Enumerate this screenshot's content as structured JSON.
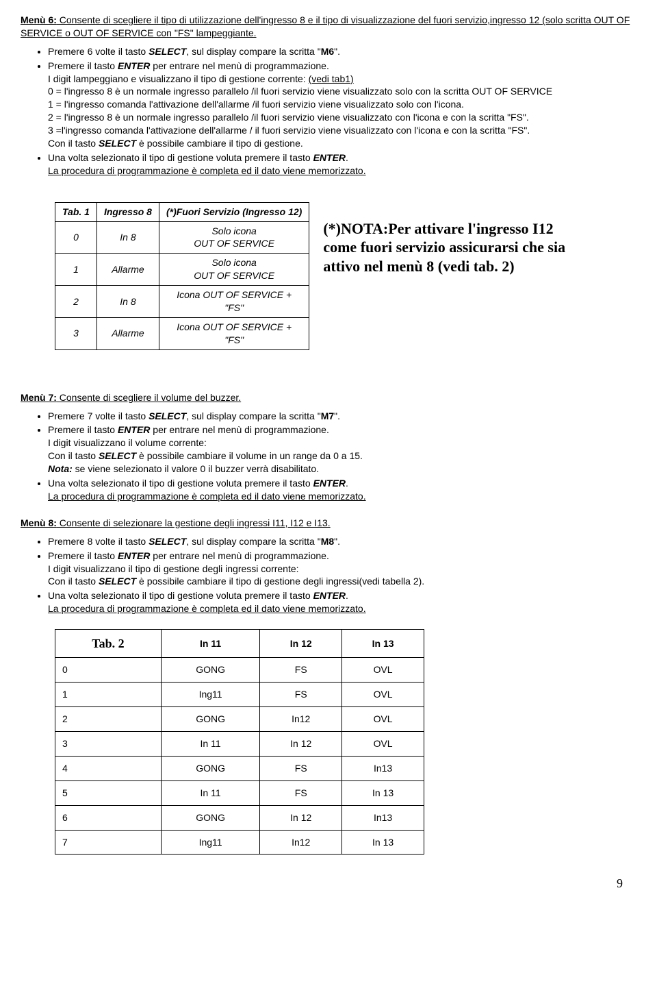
{
  "menu6": {
    "title_prefix": "Menù 6:",
    "title_rest": " Consente di scegliere il tipo di utilizzazione dell'ingresso 8 e il tipo di visualizzazione del fuori servizio,ingresso 12 (solo scritta OUT OF SERVICE o OUT OF SERVICE con \"FS\" lampeggiante.",
    "b1_pre": "Premere 6 volte il tasto ",
    "b1_select": "SELECT",
    "b1_mid": ", sul display compare la scritta \"",
    "b1_m6": "M6",
    "b1_end": "\".",
    "b2_pre": "Premere il tasto ",
    "b2_enter": "ENTER",
    "b2_end": " per entrare nel menù di programmazione.",
    "b2_sub1": "I digit lampeggiano e visualizzano il tipo di gestione corrente: ",
    "b2_sub1_ul": "(vedi tab1)",
    "b2_sub2": "0 = l'ingresso 8 è un normale ingresso parallelo /il fuori servizio viene visualizzato solo con la scritta OUT OF SERVICE",
    "b2_sub3": "1 = l'ingresso comanda l'attivazione dell'allarme /il fuori servizio viene visualizzato solo con l'icona.",
    "b2_sub4": "2 = l'ingresso 8 è un normale ingresso parallelo /il fuori servizio viene visualizzato con l'icona e con la scritta \"FS\".",
    "b2_sub5": "3 =l'ingresso comanda l'attivazione dell'allarme / il fuori servizio viene visualizzato con l'icona e con la scritta \"FS\".",
    "b2_sub6_pre": "Con il tasto ",
    "b2_sub6_select": "SELECT",
    "b2_sub6_end": " è possibile cambiare il tipo di gestione.",
    "b3_pre": "Una volta selezionato il tipo di gestione voluta premere il tasto ",
    "b3_enter": "ENTER",
    "b3_end": ".",
    "b3_sub": "La procedura di programmazione è completa ed il dato viene memorizzato."
  },
  "tab1": {
    "h1": "Tab. 1",
    "h2": "Ingresso 8",
    "h3": "(*)Fuori Servizio (Ingresso 12)",
    "rows": [
      [
        "0",
        "In 8",
        "Solo icona\nOUT OF SERVICE"
      ],
      [
        "1",
        "Allarme",
        "Solo icona\nOUT OF SERVICE"
      ],
      [
        "2",
        "In 8",
        "Icona OUT OF SERVICE +\n\"FS\""
      ],
      [
        "3",
        "Allarme",
        "Icona OUT OF SERVICE +\n\"FS\""
      ]
    ]
  },
  "note": "(*)NOTA:Per attivare l'ingresso I12 come fuori servizio assicurarsi che sia attivo nel menù 8 (vedi tab. 2)",
  "menu7": {
    "title_prefix": "Menù 7:",
    "title_rest": " Consente di scegliere il volume del buzzer.",
    "b1_pre": "Premere 7 volte il tasto ",
    "b1_select": "SELECT",
    "b1_mid": ", sul display compare la scritta \"",
    "b1_m7": "M7",
    "b1_end": "\".",
    "b2_pre": "Premere il tasto ",
    "b2_enter": "ENTER",
    "b2_end": " per entrare nel menù di programmazione.",
    "b2_sub1": "I digit visualizzano il volume corrente:",
    "b2_sub2_pre": "Con il tasto ",
    "b2_sub2_select": "SELECT",
    "b2_sub2_end": " è possibile cambiare il volume in un range da 0 a 15.",
    "b2_sub3_pre": "Nota:",
    "b2_sub3_end": " se viene selezionato il valore 0 il buzzer verrà disabilitato.",
    "b3_pre": "Una volta selezionato il tipo di gestione voluta premere il tasto ",
    "b3_enter": "ENTER",
    "b3_end": ".",
    "b3_sub": "La procedura di programmazione è completa ed il dato viene memorizzato."
  },
  "menu8": {
    "title_prefix": "Menù 8:",
    "title_rest": " Consente di selezionare la gestione degli ingressi I11, I12 e I13.",
    "b1_pre": "Premere 8 volte il tasto ",
    "b1_select": "SELECT",
    "b1_mid": ", sul display compare la scritta \"",
    "b1_m8": "M8",
    "b1_end": "\".",
    "b2_pre": "Premere il tasto ",
    "b2_enter": "ENTER",
    "b2_end": " per entrare nel menù di programmazione.",
    "b2_sub1": "I digit visualizzano il tipo di gestione degli ingressi corrente:",
    "b2_sub2_pre": "Con il tasto ",
    "b2_sub2_select": "SELECT",
    "b2_sub2_end": " è possibile cambiare il tipo di gestione degli ingressi(vedi tabella 2).",
    "b3_pre": "Una volta selezionato il tipo di gestione voluta premere il tasto ",
    "b3_enter": "ENTER",
    "b3_end": ".",
    "b3_sub": "La procedura di programmazione è completa ed il dato viene memorizzato."
  },
  "tab2": {
    "h1": "Tab. 2",
    "h2": "In 11",
    "h3": "In 12",
    "h4": "In 13",
    "rows": [
      [
        "0",
        "GONG",
        "FS",
        "OVL"
      ],
      [
        "1",
        "Ing11",
        "FS",
        "OVL"
      ],
      [
        "2",
        "GONG",
        "In12",
        "OVL"
      ],
      [
        "3",
        "In 11",
        "In 12",
        "OVL"
      ],
      [
        "4",
        "GONG",
        "FS",
        "In13"
      ],
      [
        "5",
        "In 11",
        "FS",
        "In 13"
      ],
      [
        "6",
        "GONG",
        "In 12",
        "In13"
      ],
      [
        "7",
        "Ing11",
        "In12",
        "In 13"
      ]
    ]
  },
  "page": "9"
}
